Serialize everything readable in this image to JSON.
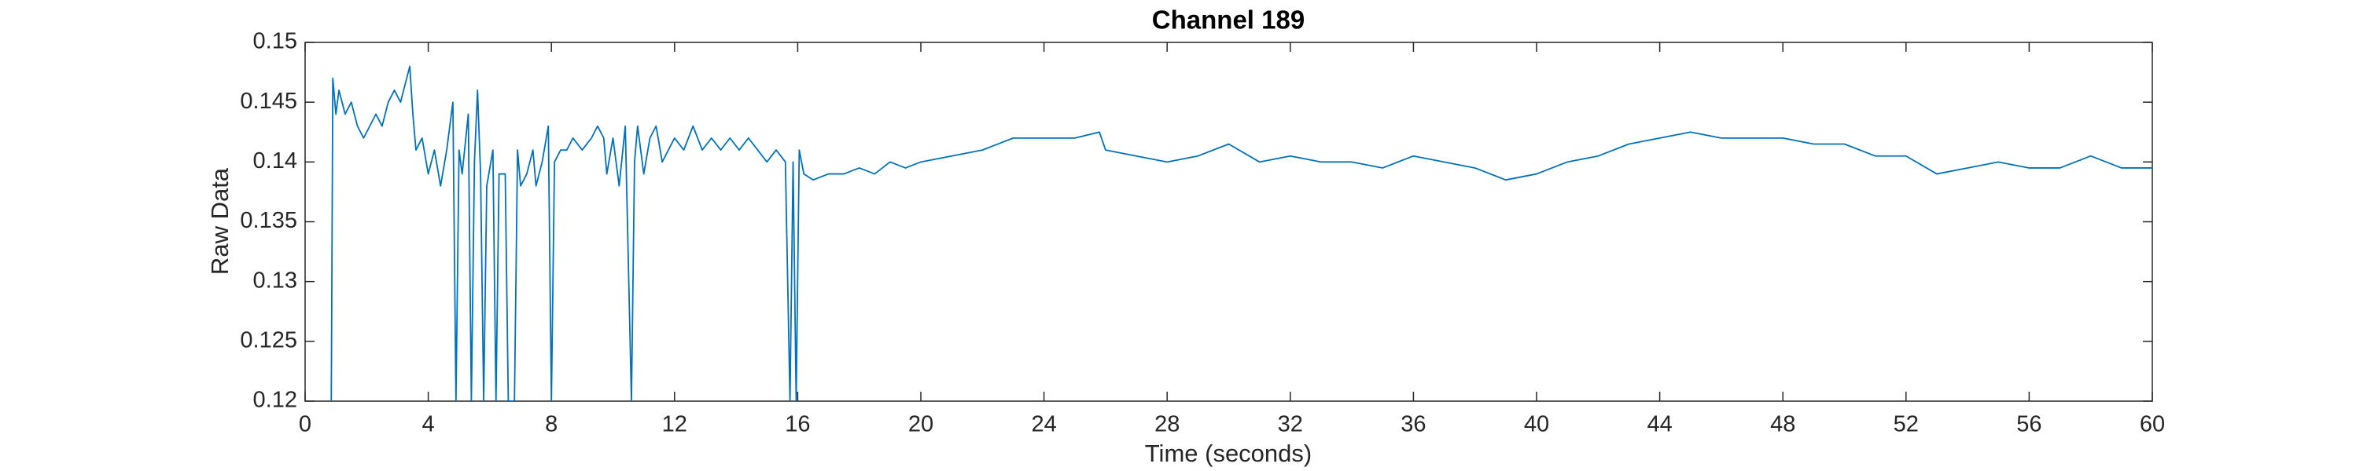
{
  "chart_data": {
    "type": "line",
    "title": "Channel 189",
    "x_label": "Time (seconds)",
    "y_label": "Raw Data",
    "color": "#0072bd",
    "xlim": [
      0,
      60
    ],
    "xticks": [
      0,
      4,
      8,
      12,
      16,
      20,
      24,
      28,
      32,
      36,
      40,
      44,
      48,
      52,
      56,
      60
    ],
    "ylim": [
      0.12,
      0.15
    ],
    "yticks": [
      0.12,
      0.125,
      0.13,
      0.135,
      0.14,
      0.145,
      0.15
    ],
    "x": [
      0.85,
      0.9,
      1.0,
      1.1,
      1.3,
      1.5,
      1.7,
      1.9,
      2.1,
      2.3,
      2.5,
      2.7,
      2.9,
      3.1,
      3.3,
      3.4,
      3.5,
      3.6,
      3.8,
      4.0,
      4.2,
      4.4,
      4.6,
      4.8,
      4.9,
      5.0,
      5.1,
      5.3,
      5.4,
      5.5,
      5.6,
      5.7,
      5.8,
      5.9,
      6.1,
      6.2,
      6.3,
      6.5,
      6.6,
      6.8,
      6.9,
      7.0,
      7.2,
      7.4,
      7.5,
      7.7,
      7.9,
      8.0,
      8.1,
      8.3,
      8.5,
      8.7,
      9.0,
      9.3,
      9.5,
      9.7,
      9.8,
      10.0,
      10.2,
      10.4,
      10.6,
      10.7,
      10.8,
      11.0,
      11.2,
      11.4,
      11.6,
      11.8,
      12.0,
      12.3,
      12.6,
      12.9,
      13.2,
      13.5,
      13.8,
      14.1,
      14.4,
      14.7,
      15.0,
      15.3,
      15.6,
      15.75,
      15.85,
      15.95,
      16.05,
      16.2,
      16.5,
      17,
      17.5,
      18,
      18.5,
      19,
      19.5,
      20,
      21,
      22,
      23,
      24,
      25,
      25.8,
      26,
      27,
      28,
      29,
      30,
      31,
      32,
      33,
      34,
      35,
      36,
      37,
      38,
      39,
      40,
      41,
      42,
      43,
      44,
      45,
      46,
      47,
      48,
      49,
      50,
      51,
      52,
      53,
      54,
      55,
      56,
      57,
      58,
      59,
      60
    ],
    "values": [
      0.12,
      0.147,
      0.144,
      0.146,
      0.144,
      0.145,
      0.143,
      0.142,
      0.143,
      0.144,
      0.143,
      0.145,
      0.146,
      0.145,
      0.147,
      0.148,
      0.144,
      0.141,
      0.142,
      0.139,
      0.141,
      0.138,
      0.141,
      0.145,
      0.12,
      0.141,
      0.139,
      0.144,
      0.12,
      0.14,
      0.146,
      0.139,
      0.12,
      0.138,
      0.141,
      0.12,
      0.139,
      0.139,
      0.12,
      0.12,
      0.141,
      0.138,
      0.139,
      0.141,
      0.138,
      0.14,
      0.143,
      0.12,
      0.14,
      0.141,
      0.141,
      0.142,
      0.141,
      0.142,
      0.143,
      0.142,
      0.139,
      0.142,
      0.138,
      0.143,
      0.12,
      0.14,
      0.143,
      0.139,
      0.142,
      0.143,
      0.14,
      0.141,
      0.142,
      0.141,
      0.143,
      0.141,
      0.142,
      0.141,
      0.142,
      0.141,
      0.142,
      0.141,
      0.14,
      0.141,
      0.14,
      0.12,
      0.14,
      0.12,
      0.141,
      0.139,
      0.1385,
      0.139,
      0.139,
      0.1395,
      0.139,
      0.14,
      0.1395,
      0.14,
      0.1405,
      0.141,
      0.142,
      0.142,
      0.142,
      0.1425,
      0.141,
      0.1405,
      0.14,
      0.1405,
      0.1415,
      0.14,
      0.1405,
      0.14,
      0.14,
      0.1395,
      0.1405,
      0.14,
      0.1395,
      0.1385,
      0.139,
      0.14,
      0.1405,
      0.1415,
      0.142,
      0.1425,
      0.142,
      0.142,
      0.142,
      0.1415,
      0.1415,
      0.1405,
      0.1405,
      0.139,
      0.1395,
      0.14,
      0.1395,
      0.1395,
      0.1405,
      0.1395,
      0.1395
    ]
  }
}
